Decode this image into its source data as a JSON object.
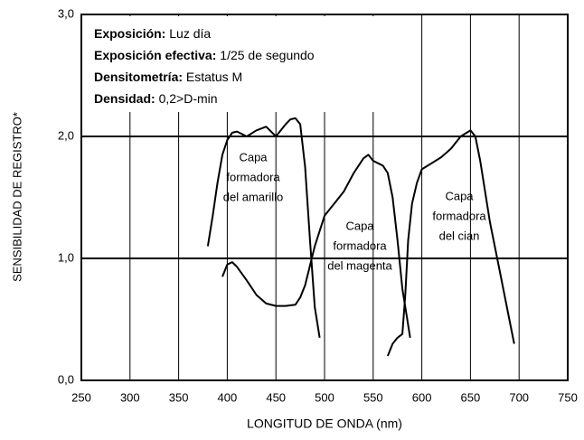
{
  "chart_data": {
    "type": "line",
    "x_label": "LONGITUD DE ONDA (nm)",
    "y_label": "SENSIBILIDAD DE REGISTRO*",
    "info": [
      {
        "label": "Exposición:",
        "value": "Luz día"
      },
      {
        "label": "Exposición efectiva:",
        "value": "1/25 de segundo"
      },
      {
        "label": "Densitometría:",
        "value": "Estatus M"
      },
      {
        "label": "Densidad:",
        "value": "0,2>D-min"
      }
    ],
    "xlim": [
      250,
      750
    ],
    "xticks": [
      250,
      300,
      350,
      400,
      450,
      500,
      550,
      600,
      650,
      700,
      750
    ],
    "ylim": [
      0,
      3
    ],
    "yticks": [
      {
        "value": 0,
        "label": "0,0"
      },
      {
        "value": 1,
        "label": "1,0"
      },
      {
        "value": 2,
        "label": "2,0"
      },
      {
        "value": 3,
        "label": "3,0"
      }
    ],
    "grid": true,
    "series": [
      {
        "label": [
          "Capa",
          "formadora",
          "del amarillo"
        ],
        "color": "#000000",
        "x": [
          380,
          385,
          390,
          395,
          400,
          405,
          410,
          420,
          430,
          440,
          445,
          450,
          460,
          465,
          470,
          475,
          480,
          485,
          490,
          495
        ],
        "values": [
          1.1,
          1.35,
          1.62,
          1.85,
          1.97,
          2.03,
          2.04,
          2.0,
          2.05,
          2.08,
          2.04,
          2.0,
          2.1,
          2.14,
          2.15,
          2.1,
          1.75,
          1.15,
          0.6,
          0.35
        ]
      },
      {
        "label": [
          "Capa",
          "formadora",
          "del magenta"
        ],
        "color": "#000000",
        "x": [
          395,
          400,
          405,
          410,
          420,
          430,
          440,
          450,
          460,
          470,
          475,
          480,
          490,
          500,
          510,
          520,
          530,
          540,
          545,
          550,
          555,
          560,
          565,
          570,
          575,
          580,
          585,
          588
        ],
        "values": [
          0.85,
          0.95,
          0.97,
          0.93,
          0.82,
          0.7,
          0.63,
          0.61,
          0.61,
          0.62,
          0.68,
          0.78,
          1.1,
          1.35,
          1.45,
          1.55,
          1.7,
          1.82,
          1.85,
          1.8,
          1.78,
          1.76,
          1.7,
          1.5,
          1.15,
          0.75,
          0.5,
          0.35
        ]
      },
      {
        "label": [
          "Capa",
          "formadora",
          "del cian"
        ],
        "color": "#000000",
        "x": [
          565,
          570,
          575,
          580,
          583,
          586,
          590,
          595,
          600,
          610,
          620,
          630,
          640,
          650,
          655,
          660,
          670,
          680,
          690,
          695
        ],
        "values": [
          0.2,
          0.3,
          0.35,
          0.38,
          0.7,
          1.15,
          1.45,
          1.62,
          1.73,
          1.78,
          1.83,
          1.9,
          2.0,
          2.05,
          2.0,
          1.8,
          1.3,
          0.9,
          0.5,
          0.3
        ]
      }
    ]
  }
}
